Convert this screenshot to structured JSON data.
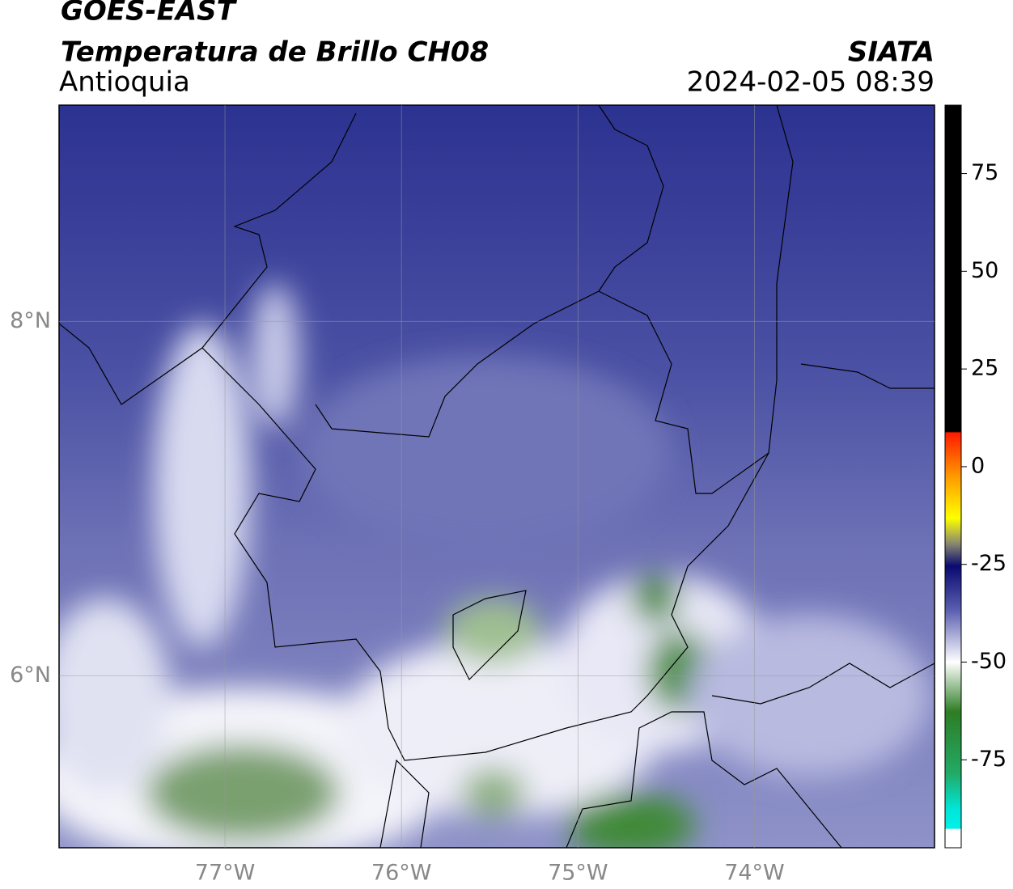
{
  "header": {
    "title": "GOES-EAST",
    "subtitle": "Temperatura de Brillo CH08",
    "region": "Antioquia",
    "source": "SIATA",
    "datetime": "2024-02-05 08:39"
  },
  "map": {
    "xlim": [
      -77.94,
      -72.98
    ],
    "ylim": [
      5.03,
      9.22
    ],
    "xticks": [
      {
        "value": -77,
        "label": "77°W"
      },
      {
        "value": -76,
        "label": "76°W"
      },
      {
        "value": -75,
        "label": "75°W"
      },
      {
        "value": -74,
        "label": "74°W"
      }
    ],
    "yticks": [
      {
        "value": 6,
        "label": "6°N"
      },
      {
        "value": 8,
        "label": "8°N"
      }
    ],
    "grid": true
  },
  "colorbar": {
    "lim": [
      -97.5,
      92.5
    ],
    "ticks": [
      75,
      50,
      25,
      0,
      -25,
      -50,
      -75
    ]
  }
}
